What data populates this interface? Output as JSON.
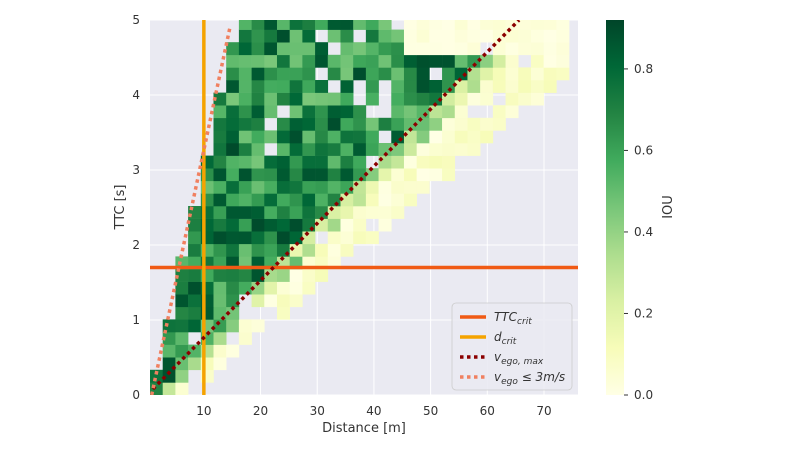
{
  "chart_data": {
    "type": "heatmap",
    "xlabel": "Distance [m]",
    "ylabel": "TTC [s]",
    "xlim": [
      0.5,
      76
    ],
    "ylim": [
      0,
      5
    ],
    "x_ticks": [
      10,
      20,
      30,
      40,
      50,
      60,
      70
    ],
    "y_ticks": [
      0,
      1,
      2,
      3,
      4,
      5
    ],
    "grid": true,
    "background": "#eaeaf2",
    "colorbar": {
      "label": "IOU",
      "range": [
        0,
        0.92
      ],
      "ticks": [
        0.0,
        0.2,
        0.4,
        0.6,
        0.8
      ],
      "tick_labels": [
        "0.0",
        "0.2",
        "0.4",
        "0.6",
        "0.8"
      ],
      "colormap": "YlGn",
      "color_stops": [
        "#ffffe5",
        "#f7fcb9",
        "#d9f0a3",
        "#addd8e",
        "#78c679",
        "#41ab5d",
        "#238443",
        "#006837",
        "#004529"
      ]
    },
    "bin_size": {
      "distance": 2.24,
      "ttc": 0.168
    },
    "heatmap_profile": {
      "description_free_parameters": true,
      "ttc_bins": 30,
      "distance_bins": 34
    },
    "reference_lines": [
      {
        "name": "TTC_crit",
        "orientation": "horizontal",
        "y": 1.7,
        "color": "#f05a14",
        "style": "solid"
      },
      {
        "name": "d_crit",
        "orientation": "vertical",
        "x": 10,
        "color": "#f5a300",
        "style": "solid"
      },
      {
        "name": "v_ego,max",
        "points": [
          [
            1,
            0.08
          ],
          [
            65.6,
            5.0
          ]
        ],
        "color": "#8b0000",
        "style": "dotted"
      },
      {
        "name": "v_ego<=3m/s",
        "points": [
          [
            0.8,
            0.0
          ],
          [
            14.6,
            4.9
          ]
        ],
        "color": "#f08060",
        "style": "dotted"
      }
    ],
    "legend": {
      "position": "bottom-right",
      "entries": [
        {
          "main": "TTC",
          "sub": "crit",
          "suffix": ""
        },
        {
          "main": "d",
          "sub": "crit",
          "suffix": ""
        },
        {
          "main": "v",
          "sub": "ego, max",
          "suffix": ""
        },
        {
          "main": "v",
          "sub": "ego",
          "suffix": " ≤ 3m/s"
        }
      ]
    }
  }
}
